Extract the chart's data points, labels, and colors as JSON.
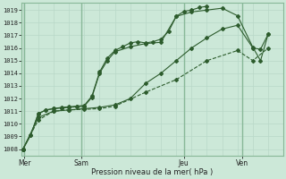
{
  "background_color": "#cce8d8",
  "grid_color_minor": "#b8d8c8",
  "grid_color_major": "#88b898",
  "line_color": "#2d5c2d",
  "marker_color": "#2d5c2d",
  "yticks": [
    1008,
    1009,
    1010,
    1011,
    1012,
    1013,
    1014,
    1015,
    1016,
    1017,
    1018,
    1019
  ],
  "xlabel": "Pression niveau de la mer( hPa )",
  "xtick_labels": [
    "Mer",
    "Sam",
    "Jeu",
    "Ven"
  ],
  "series": [
    {
      "x": [
        0.0,
        0.25,
        0.5,
        0.75,
        1.0,
        1.25,
        1.5,
        1.75,
        2.0,
        2.25,
        2.5,
        2.75,
        3.0,
        3.25,
        3.5,
        3.75,
        4.0,
        4.25,
        4.5,
        4.75,
        5.0,
        5.25,
        5.5,
        5.75,
        6.0
      ],
      "y": [
        1008.0,
        1009.1,
        1010.8,
        1011.1,
        1011.2,
        1011.3,
        1011.35,
        1011.4,
        1011.45,
        1012.2,
        1014.1,
        1015.2,
        1015.8,
        1016.1,
        1016.4,
        1016.5,
        1016.4,
        1016.5,
        1016.7,
        1017.3,
        1018.5,
        1018.9,
        1019.0,
        1019.2,
        1019.3
      ]
    },
    {
      "x": [
        0.0,
        0.25,
        0.5,
        0.75,
        1.0,
        1.25,
        1.5,
        1.75,
        2.0,
        2.25,
        2.5,
        2.75,
        3.0,
        3.5,
        4.0,
        4.5,
        5.0,
        5.5,
        6.0,
        6.5,
        7.0,
        7.5,
        7.75,
        8.0
      ],
      "y": [
        1008.0,
        1009.1,
        1010.8,
        1011.1,
        1011.2,
        1011.25,
        1011.3,
        1011.35,
        1011.4,
        1012.1,
        1014.0,
        1015.0,
        1015.7,
        1016.1,
        1016.35,
        1016.45,
        1018.5,
        1018.85,
        1019.0,
        1019.15,
        1018.55,
        1016.05,
        1015.0,
        1017.1
      ]
    },
    {
      "x": [
        0.0,
        0.5,
        1.0,
        1.5,
        2.0,
        2.5,
        3.0,
        3.5,
        4.0,
        4.5,
        5.0,
        5.5,
        6.0,
        6.5,
        7.0,
        7.5,
        7.75,
        8.0
      ],
      "y": [
        1008.0,
        1010.5,
        1011.0,
        1011.1,
        1011.2,
        1011.3,
        1011.5,
        1012.0,
        1013.2,
        1014.0,
        1015.0,
        1016.0,
        1016.8,
        1017.5,
        1017.8,
        1016.0,
        1015.9,
        1017.1
      ]
    },
    {
      "x": [
        0.0,
        0.5,
        1.0,
        1.5,
        2.0,
        2.5,
        3.0,
        4.0,
        5.0,
        6.0,
        7.0,
        7.5,
        8.0
      ],
      "y": [
        1008.0,
        1010.3,
        1011.0,
        1011.1,
        1011.15,
        1011.2,
        1011.4,
        1012.5,
        1013.5,
        1015.0,
        1015.8,
        1015.0,
        1016.0
      ]
    }
  ],
  "day_vlines": [
    0.05,
    1.9,
    5.25,
    7.15
  ],
  "xmin": -0.05,
  "xmax": 8.5,
  "ymin": 1007.5,
  "ymax": 1019.6
}
